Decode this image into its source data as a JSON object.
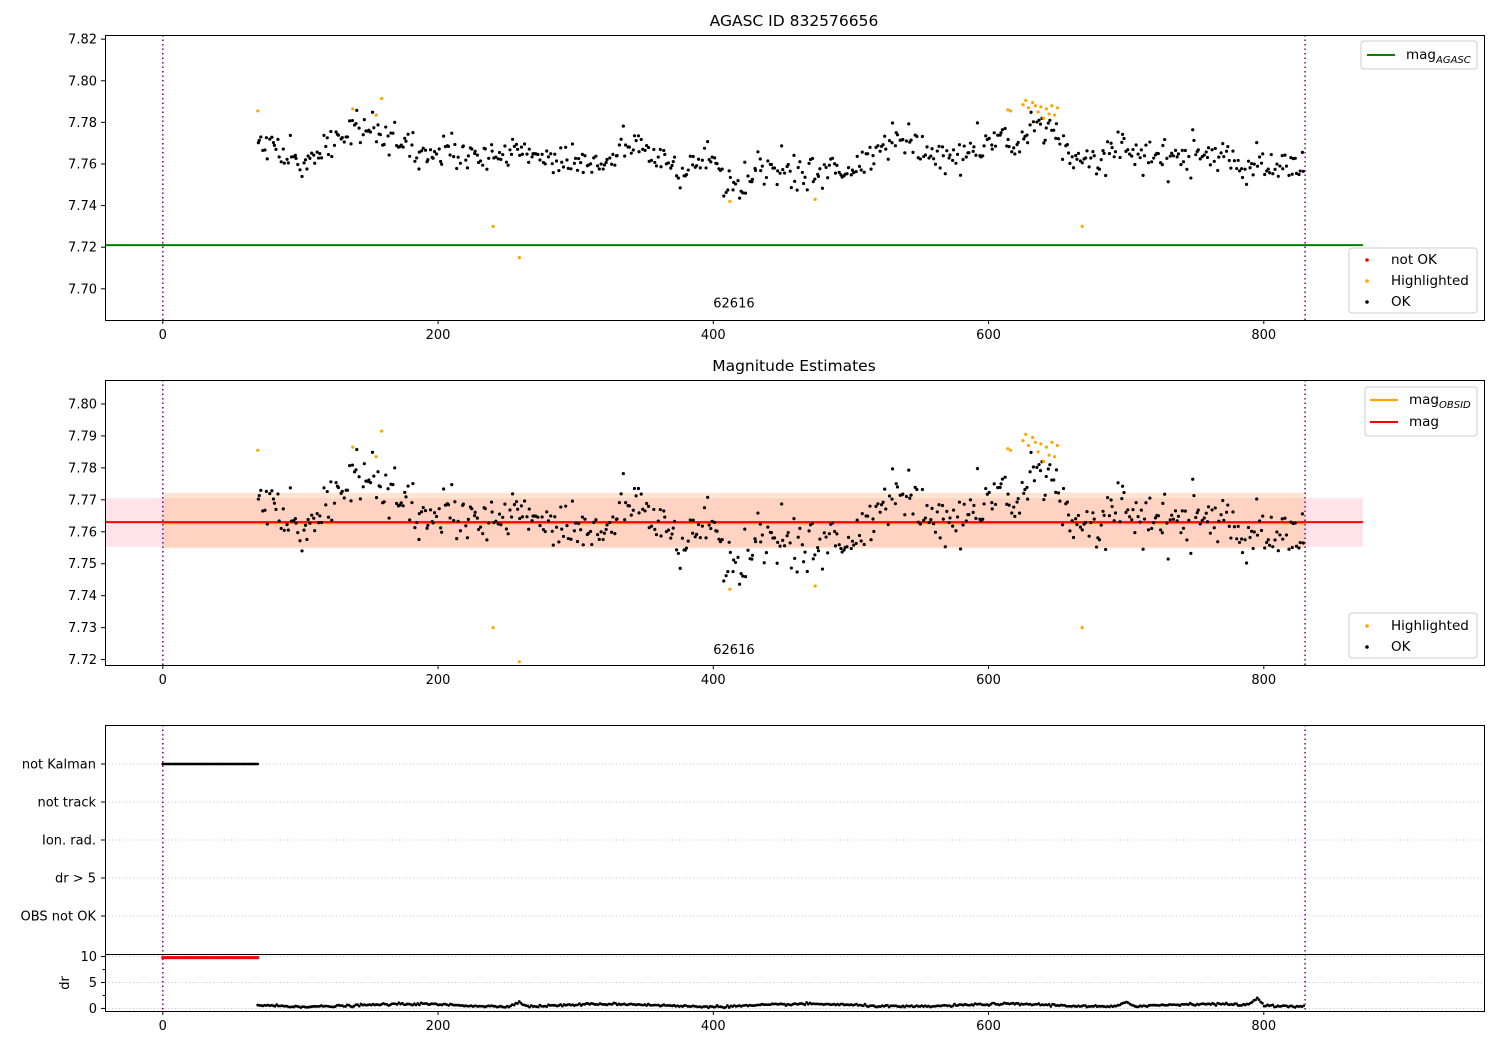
{
  "colors": {
    "ok": "#000000",
    "highlighted": "#ffa500",
    "not_ok": "#ff0000",
    "agasc_line": "#008000",
    "mag_line": "#ff0000",
    "obsid_line": "#ffa500",
    "band_mag": "#ffc0cb",
    "band_obsid": "#ffe5cc",
    "limits": "#800080"
  },
  "chart_data": [
    {
      "type": "scatter",
      "title": "AGASC ID 832576656",
      "xlim": [
        -42,
        960
      ],
      "ylim": [
        7.685,
        7.822
      ],
      "xticks": [
        0,
        200,
        400,
        600,
        800
      ],
      "yticks": [
        7.7,
        7.72,
        7.74,
        7.76,
        7.78,
        7.8,
        7.82
      ],
      "ytick_labels": [
        "7.70",
        "7.72",
        "7.74",
        "7.76",
        "7.78",
        "7.80",
        "7.82"
      ],
      "vlines": [
        0,
        830
      ],
      "annotation": {
        "text": "62616",
        "x": 415,
        "y": 7.689
      },
      "reference_line": {
        "label": "mag",
        "sub": "AGASC",
        "y": 7.721,
        "x_range": [
          -42,
          872
        ]
      },
      "legend_lines": [
        {
          "label": "mag",
          "sub": "AGASC"
        }
      ],
      "legend_points": [
        "not OK",
        "Highlighted",
        "OK"
      ],
      "series": [
        {
          "name": "OK",
          "x_range": [
            69,
            829
          ],
          "n": 620,
          "trend": [
            [
              69,
              7.775
            ],
            [
              90,
              7.762
            ],
            [
              100,
              7.76
            ],
            [
              140,
              7.778
            ],
            [
              170,
              7.77
            ],
            [
              180,
              7.764
            ],
            [
              200,
              7.768
            ],
            [
              230,
              7.762
            ],
            [
              260,
              7.765
            ],
            [
              300,
              7.762
            ],
            [
              320,
              7.76
            ],
            [
              340,
              7.77
            ],
            [
              360,
              7.762
            ],
            [
              380,
              7.758
            ],
            [
              395,
              7.762
            ],
            [
              420,
              7.749
            ],
            [
              440,
              7.76
            ],
            [
              460,
              7.754
            ],
            [
              480,
              7.758
            ],
            [
              500,
              7.755
            ],
            [
              520,
              7.765
            ],
            [
              540,
              7.772
            ],
            [
              560,
              7.764
            ],
            [
              580,
              7.763
            ],
            [
              600,
              7.768
            ],
            [
              610,
              7.775
            ],
            [
              620,
              7.768
            ],
            [
              640,
              7.78
            ],
            [
              650,
              7.775
            ],
            [
              660,
              7.762
            ],
            [
              700,
              7.766
            ],
            [
              730,
              7.762
            ],
            [
              760,
              7.766
            ],
            [
              780,
              7.76
            ],
            [
              810,
              7.756
            ],
            [
              829,
              7.758
            ]
          ],
          "noise": 0.0055
        },
        {
          "name": "Highlighted",
          "points": [
            [
              69,
              7.7855
            ],
            [
              138,
              7.7865
            ],
            [
              155,
              7.7835
            ],
            [
              159,
              7.7915
            ],
            [
              240,
              7.73
            ],
            [
              259,
              7.715
            ],
            [
              412,
              7.742
            ],
            [
              474,
              7.743
            ],
            [
              614,
              7.786
            ],
            [
              616,
              7.7855
            ],
            [
              625,
              7.7885
            ],
            [
              627,
              7.7905
            ],
            [
              629,
              7.787
            ],
            [
              632,
              7.7895
            ],
            [
              634,
              7.788
            ],
            [
              636,
              7.785
            ],
            [
              638,
              7.7875
            ],
            [
              640,
              7.782
            ],
            [
              642,
              7.7865
            ],
            [
              644,
              7.784
            ],
            [
              646,
              7.788
            ],
            [
              648,
              7.7835
            ],
            [
              650,
              7.787
            ],
            [
              668,
              7.73
            ]
          ]
        },
        {
          "name": "not OK",
          "points": []
        }
      ]
    },
    {
      "type": "scatter",
      "title": "Magnitude Estimates",
      "xlim": [
        -42,
        960
      ],
      "ylim": [
        7.7183,
        7.8075
      ],
      "xticks": [
        0,
        200,
        400,
        600,
        800
      ],
      "yticks": [
        7.72,
        7.73,
        7.74,
        7.75,
        7.76,
        7.77,
        7.78,
        7.79,
        7.8
      ],
      "ytick_labels": [
        "7.72",
        "7.73",
        "7.74",
        "7.75",
        "7.76",
        "7.77",
        "7.78",
        "7.79",
        "7.80"
      ],
      "vlines": [
        0,
        830
      ],
      "annotation": {
        "text": "62616",
        "x": 415,
        "y": 7.7205
      },
      "mag_line": {
        "label": "mag",
        "y": 7.763,
        "band": [
          7.7553,
          7.7705
        ],
        "x_range": [
          -42,
          872
        ]
      },
      "obsid_line": {
        "label": "mag",
        "sub": "OBSID",
        "y": 7.7627,
        "band": [
          7.7548,
          7.7722
        ],
        "x_range": [
          0,
          830
        ]
      },
      "legend_lines": [
        {
          "label": "mag",
          "sub": "OBSID"
        },
        {
          "label": "mag",
          "sub": ""
        }
      ],
      "legend_points": [
        "Highlighted",
        "OK"
      ],
      "series": [
        {
          "name": "OK",
          "same_as_panel": 0
        },
        {
          "name": "Highlighted",
          "points": [
            [
              69,
              7.7855
            ],
            [
              138,
              7.7865
            ],
            [
              155,
              7.7835
            ],
            [
              159,
              7.7915
            ],
            [
              240,
              7.73
            ],
            [
              259,
              7.7193
            ],
            [
              412,
              7.742
            ],
            [
              474,
              7.743
            ],
            [
              614,
              7.786
            ],
            [
              616,
              7.7855
            ],
            [
              625,
              7.7885
            ],
            [
              627,
              7.7905
            ],
            [
              629,
              7.787
            ],
            [
              632,
              7.7895
            ],
            [
              634,
              7.788
            ],
            [
              636,
              7.785
            ],
            [
              638,
              7.7875
            ],
            [
              640,
              7.782
            ],
            [
              642,
              7.7865
            ],
            [
              644,
              7.784
            ],
            [
              646,
              7.788
            ],
            [
              648,
              7.7835
            ],
            [
              650,
              7.787
            ],
            [
              668,
              7.73
            ]
          ]
        }
      ]
    },
    {
      "type": "scatter",
      "title": "",
      "xlim": [
        -42,
        960
      ],
      "categories": [
        "not Kalman",
        "not track",
        "Ion. rad.",
        "dr > 5",
        "OBS not OK"
      ],
      "vlines": [
        0,
        830
      ],
      "series": [
        {
          "name": "not Kalman",
          "x_range": [
            0,
            69
          ],
          "step": 1.3
        }
      ]
    },
    {
      "type": "scatter",
      "title": "",
      "xlim": [
        -42,
        960
      ],
      "ylim": [
        -0.5,
        10.5
      ],
      "ylabel": "dr",
      "xticks": [
        0,
        200,
        400,
        600,
        800
      ],
      "yticks": [
        0,
        5,
        10
      ],
      "ytick_labels": [
        "0",
        "5",
        "10"
      ],
      "vlines": [
        0,
        830
      ],
      "series": [
        {
          "name": "dr clipped",
          "x_range": [
            0,
            69
          ],
          "y": 9.8,
          "step": 1.3
        },
        {
          "name": "dr",
          "x_range": [
            69,
            829
          ],
          "step": 1.25,
          "base": 0.6,
          "noise": 0.25,
          "bumps": [
            [
              258,
              0.9
            ],
            [
              700,
              0.8
            ],
            [
              795,
              1.3
            ]
          ]
        }
      ]
    }
  ]
}
